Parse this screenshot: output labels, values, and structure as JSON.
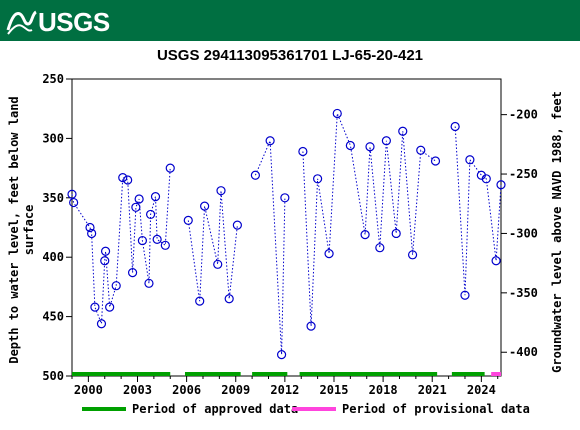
{
  "header": {
    "logo_text": "USGS",
    "brand_color": "#006f41"
  },
  "chart_data": {
    "type": "scatter",
    "title": "USGS 294113095361701 LJ-65-20-421",
    "ylabel_left": [
      "Depth to water level, feet below land",
      "surface"
    ],
    "ylabel_right": "Groundwater level above NAVD 1988, feet",
    "xlim": [
      1999.0,
      2025.2
    ],
    "ylim_left": [
      500,
      250
    ],
    "ylim_right": [
      -420,
      -170
    ],
    "xticks": [
      2000,
      2003,
      2006,
      2009,
      2012,
      2015,
      2018,
      2021,
      2024
    ],
    "yticks_left": [
      250,
      300,
      350,
      400,
      450,
      500
    ],
    "yticks_right": [
      -200,
      -250,
      -300,
      -350,
      -400
    ],
    "grid": false,
    "marker": "open-circle",
    "series_color": "#0000cc",
    "series": [
      {
        "values": [
          [
            1999.0,
            347
          ],
          [
            1999.1,
            354
          ],
          [
            2000.1,
            375
          ],
          [
            2000.2,
            380
          ],
          [
            2000.4,
            442
          ],
          [
            2000.8,
            456
          ],
          [
            2001.0,
            403
          ],
          [
            2001.05,
            395
          ],
          [
            2001.3,
            442
          ],
          [
            2001.7,
            424
          ],
          [
            2002.1,
            333
          ],
          [
            2002.4,
            335
          ],
          [
            2002.7,
            413
          ],
          [
            2002.9,
            358
          ],
          [
            2003.1,
            351
          ],
          [
            2003.3,
            386
          ],
          [
            2003.7,
            422
          ],
          [
            2003.8,
            364
          ],
          [
            2004.1,
            349
          ],
          [
            2004.2,
            385
          ],
          [
            2004.7,
            390
          ],
          [
            2005.0,
            325
          ]
        ]
      },
      {
        "values": [
          [
            2006.1,
            369
          ],
          [
            2006.8,
            437
          ],
          [
            2007.1,
            357
          ],
          [
            2007.9,
            406
          ],
          [
            2008.1,
            344
          ],
          [
            2008.6,
            435
          ],
          [
            2009.1,
            373
          ]
        ]
      },
      {
        "values": [
          [
            2010.2,
            331
          ],
          [
            2011.1,
            302
          ],
          [
            2011.8,
            482
          ],
          [
            2012.0,
            350
          ]
        ]
      },
      {
        "values": [
          [
            2013.1,
            311
          ],
          [
            2013.6,
            458
          ],
          [
            2014.0,
            334
          ],
          [
            2014.7,
            397
          ],
          [
            2015.2,
            279
          ],
          [
            2016.0,
            306
          ],
          [
            2016.9,
            381
          ],
          [
            2017.2,
            307
          ],
          [
            2017.8,
            392
          ],
          [
            2018.2,
            302
          ],
          [
            2018.8,
            380
          ],
          [
            2019.2,
            294
          ],
          [
            2019.8,
            398
          ],
          [
            2020.3,
            310
          ],
          [
            2021.2,
            319
          ]
        ]
      },
      {
        "values": [
          [
            2022.4,
            290
          ],
          [
            2023.0,
            432
          ],
          [
            2023.3,
            318
          ],
          [
            2024.0,
            331
          ],
          [
            2024.3,
            334
          ],
          [
            2024.9,
            403
          ],
          [
            2025.2,
            339
          ]
        ]
      }
    ],
    "approved_periods": [
      [
        1999.0,
        2005.0
      ],
      [
        2005.9,
        2009.3
      ],
      [
        2010.0,
        2012.15
      ],
      [
        2012.9,
        2021.3
      ],
      [
        2022.2,
        2024.2
      ]
    ],
    "provisional_periods": [
      [
        2024.6,
        2025.2
      ]
    ],
    "legend": {
      "approved_label": "Period of approved data",
      "approved_color": "#00a000",
      "provisional_label": "Period of provisional data",
      "provisional_color": "#ff44dd",
      "placement": "bottom"
    }
  }
}
